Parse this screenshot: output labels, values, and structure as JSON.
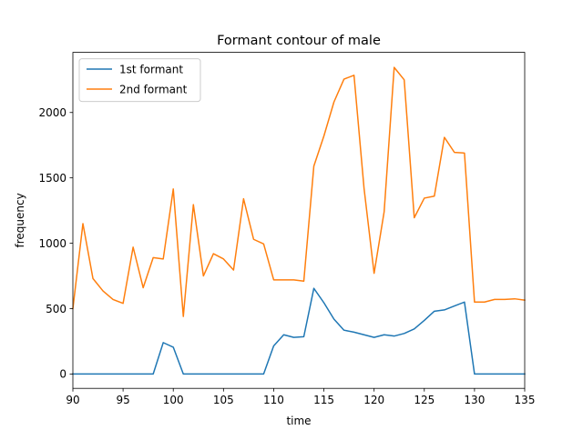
{
  "chart_data": {
    "type": "line",
    "title": "Formant contour of male",
    "xlabel": "time",
    "ylabel": "frequency",
    "xlim": [
      90,
      135
    ],
    "ylim": [
      -110,
      2460
    ],
    "xticks": [
      90,
      95,
      100,
      105,
      110,
      115,
      120,
      125,
      130,
      135
    ],
    "yticks": [
      0,
      500,
      1000,
      1500,
      2000
    ],
    "grid": false,
    "legend_position": "upper left",
    "x": [
      90,
      91,
      92,
      93,
      94,
      95,
      96,
      97,
      98,
      99,
      100,
      101,
      102,
      103,
      104,
      105,
      106,
      107,
      108,
      109,
      110,
      111,
      112,
      113,
      114,
      115,
      116,
      117,
      118,
      119,
      120,
      121,
      122,
      123,
      124,
      125,
      126,
      127,
      128,
      129,
      130,
      131,
      132,
      133,
      134,
      135
    ],
    "series": [
      {
        "name": "1st formant",
        "color": "#1f77b4",
        "values": [
          0,
          0,
          0,
          0,
          0,
          0,
          0,
          0,
          0,
          240,
          205,
          0,
          0,
          0,
          0,
          0,
          0,
          0,
          0,
          0,
          215,
          300,
          280,
          285,
          655,
          545,
          420,
          335,
          320,
          300,
          280,
          300,
          290,
          310,
          345,
          410,
          480,
          490,
          520,
          550,
          0,
          0,
          0,
          0,
          0,
          0
        ]
      },
      {
        "name": "2nd formant",
        "color": "#ff7f0e",
        "values": [
          500,
          1150,
          730,
          635,
          570,
          540,
          970,
          660,
          890,
          880,
          1415,
          440,
          1295,
          750,
          920,
          880,
          795,
          1340,
          1030,
          995,
          720,
          720,
          720,
          710,
          1590,
          1820,
          2080,
          2255,
          2285,
          1420,
          770,
          1240,
          2345,
          2250,
          1195,
          1345,
          1360,
          1810,
          1695,
          1690,
          550,
          550,
          570,
          570,
          575,
          565
        ]
      }
    ]
  }
}
